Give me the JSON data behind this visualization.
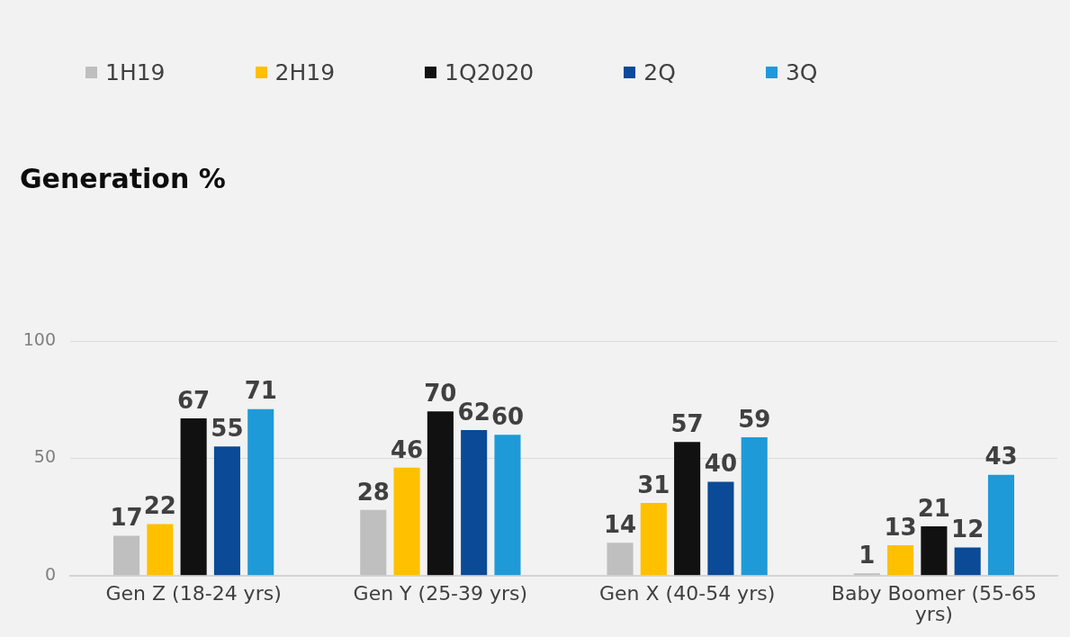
{
  "chart_data": {
    "type": "bar",
    "title": "Generation %",
    "categories": [
      "Gen Z (18-24 yrs)",
      "Gen Y (25-39 yrs)",
      "Gen X (40-54 yrs)",
      "Baby Boomer (55-65 yrs)"
    ],
    "series": [
      {
        "name": "1H19",
        "color": "#bfbfbf",
        "values": [
          17,
          28,
          14,
          1
        ]
      },
      {
        "name": "2H19",
        "color": "#ffc000",
        "values": [
          22,
          46,
          31,
          13
        ]
      },
      {
        "name": "1Q2020",
        "color": "#111111",
        "values": [
          67,
          70,
          57,
          21
        ]
      },
      {
        "name": "2Q",
        "color": "#0a4a97",
        "values": [
          55,
          62,
          40,
          12
        ]
      },
      {
        "name": "3Q",
        "color": "#1f9ad8",
        "values": [
          71,
          60,
          59,
          43
        ]
      }
    ],
    "ylim": [
      0,
      100
    ],
    "yticks": [
      0,
      50,
      100
    ],
    "grid": "y",
    "legend": "top left",
    "data_labels": true
  }
}
